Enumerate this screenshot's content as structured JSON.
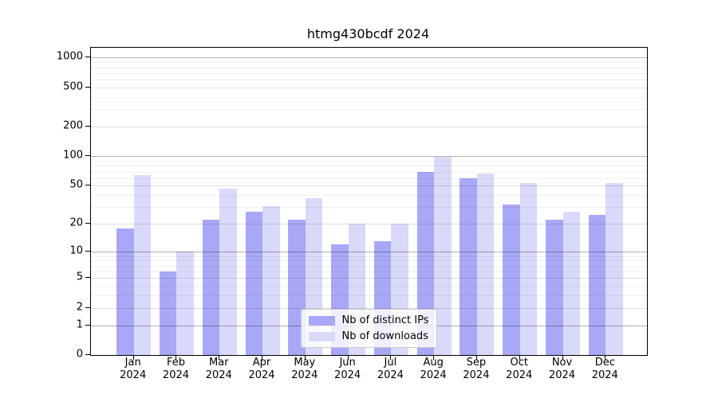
{
  "chart_data": {
    "type": "bar",
    "title": "htmg430bcdf 2024",
    "categories": [
      "Jan",
      "Feb",
      "Mar",
      "Apr",
      "May",
      "Jun",
      "Jul",
      "Aug",
      "Sep",
      "Oct",
      "Nov",
      "Dec"
    ],
    "x_year_label": "2024",
    "series": [
      {
        "name": "Nb of distinct IPs",
        "color": "#a8a8f6",
        "values": [
          18,
          6,
          22,
          27,
          22,
          12,
          13,
          69,
          60,
          32,
          22,
          25
        ]
      },
      {
        "name": "Nb of downloads",
        "color": "#d9d9f9",
        "values": [
          65,
          10,
          47,
          31,
          37,
          20,
          20,
          100,
          67,
          53,
          27,
          53
        ]
      }
    ],
    "yscale": "log1p",
    "yticks": [
      0,
      1,
      2,
      5,
      10,
      20,
      50,
      100,
      200,
      500,
      1000
    ],
    "ytick_decades": [
      1,
      10,
      100,
      1000
    ],
    "yticks_minor": [
      3,
      4,
      6,
      7,
      8,
      9,
      30,
      40,
      60,
      70,
      80,
      90,
      300,
      400,
      600,
      700,
      800,
      900
    ],
    "ylim": [
      0,
      1260
    ],
    "grid": "on",
    "legend_position": "lower center"
  }
}
